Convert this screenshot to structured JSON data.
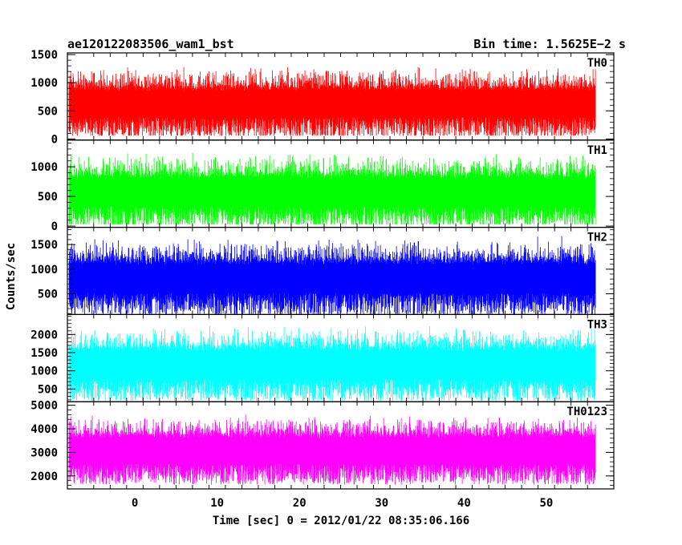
{
  "header": {
    "left": "ae120122083506_wam1_bst",
    "right": "Bin time: 1.5625E−2 s"
  },
  "chart_data": {
    "type": "line",
    "title": "ae120122083506_wam1_bst",
    "bin_time": "Bin time: 1.5625E−2 s",
    "xlabel": "Time [sec] 0 = 2012/01/22 08:35:06.166",
    "ylabel": "Counts/sec",
    "xlim": [
      -8.2,
      58.2
    ],
    "xticks": [
      0,
      10,
      20,
      30,
      40,
      50
    ],
    "data_x_range": [
      -8,
      56
    ],
    "grid": false,
    "panels": [
      {
        "label": "TH0",
        "color": "#ff0000",
        "ylim": [
          -20,
          1530
        ],
        "yticks": [
          0,
          500,
          1000,
          1500
        ],
        "mean": 620,
        "amplitude": 420,
        "min": 60,
        "max": 1530
      },
      {
        "label": "TH1",
        "color": "#00ff00",
        "ylim": [
          -20,
          1450
        ],
        "yticks": [
          0,
          500,
          1000
        ],
        "mean": 560,
        "amplitude": 420,
        "min": 30,
        "max": 1450
      },
      {
        "label": "TH2",
        "color": "#0000ff",
        "ylim": [
          80,
          1850
        ],
        "yticks": [
          500,
          1000,
          1500
        ],
        "mean": 800,
        "amplitude": 520,
        "min": 80,
        "max": 1850
      },
      {
        "label": "TH3",
        "color": "#00ffff",
        "ylim": [
          150,
          2550
        ],
        "yticks": [
          500,
          1000,
          1500,
          2000
        ],
        "mean": 1150,
        "amplitude": 680,
        "min": 150,
        "max": 2550
      },
      {
        "label": "TH0123",
        "color": "#ff00ff",
        "ylim": [
          1450,
          5150
        ],
        "yticks": [
          2000,
          3000,
          4000,
          5000
        ],
        "mean": 3050,
        "amplitude": 980,
        "min": 1450,
        "max": 5150
      }
    ]
  }
}
